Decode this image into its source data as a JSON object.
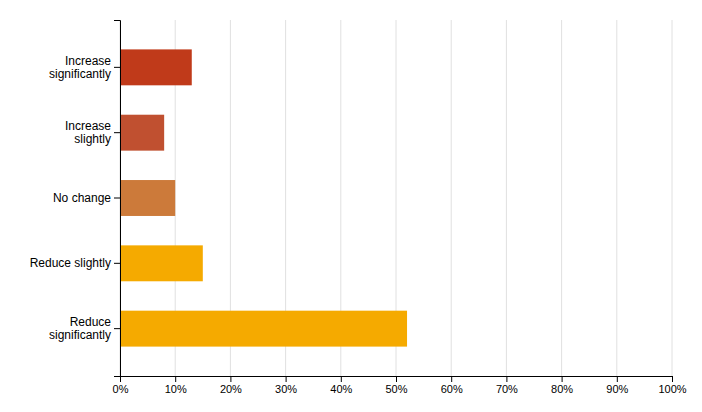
{
  "chart_data": {
    "type": "bar",
    "orientation": "horizontal",
    "categories": [
      "Increase\nsignificantly",
      "Increase\nslightly",
      "No change",
      "Reduce slightly",
      "Reduce\nsignificantly"
    ],
    "values": [
      13,
      8,
      10,
      15,
      52
    ],
    "colors": [
      "#c03a1a",
      "#c05030",
      "#cc7a3a",
      "#f5aa00",
      "#f5aa00"
    ],
    "xlim": [
      0,
      100
    ],
    "xticks": [
      {
        "value": 0,
        "label": "0%"
      },
      {
        "value": 10,
        "label": "10%"
      },
      {
        "value": 20,
        "label": "20%"
      },
      {
        "value": 30,
        "label": "30%"
      },
      {
        "value": 40,
        "label": "40%"
      },
      {
        "value": 50,
        "label": "50%"
      },
      {
        "value": 60,
        "label": "60%"
      },
      {
        "value": 70,
        "label": "70%"
      },
      {
        "value": 80,
        "label": "80%"
      },
      {
        "value": 90,
        "label": "90%"
      },
      {
        "value": 100,
        "label": "100%"
      }
    ],
    "grid": true
  }
}
